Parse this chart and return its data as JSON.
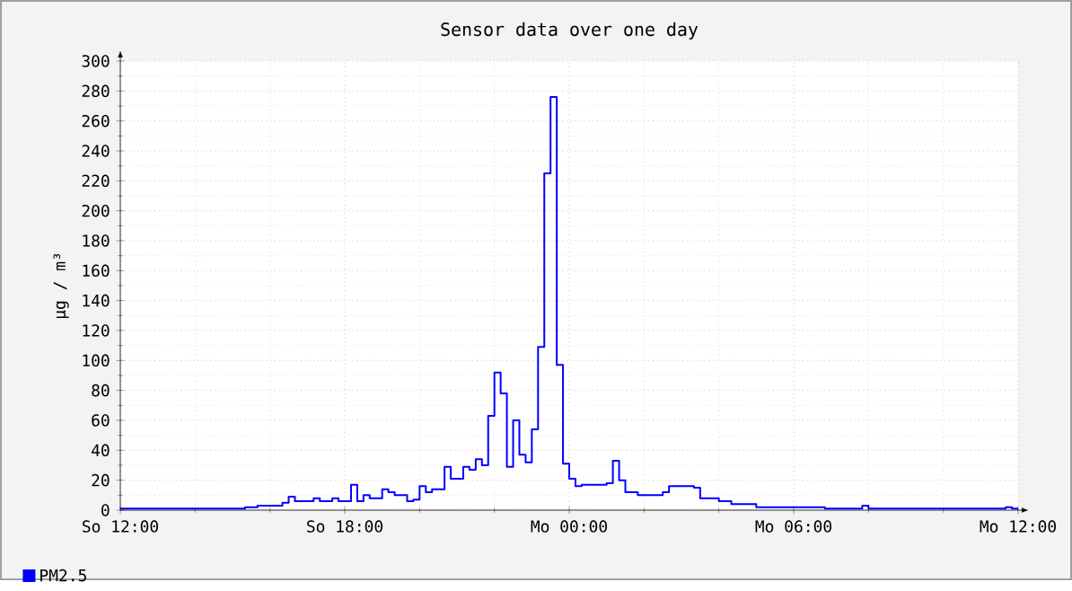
{
  "chart_data": {
    "type": "step",
    "title": "Sensor data over one day",
    "ylabel": "µg / m³",
    "categories": [
      "So 12:00",
      null,
      null,
      null,
      null,
      null,
      null,
      null,
      null,
      null,
      null,
      null,
      null,
      null,
      null,
      null,
      null,
      null,
      null,
      null,
      null,
      null,
      null,
      null,
      null,
      null,
      null,
      null,
      null,
      null,
      null,
      null,
      null,
      null,
      null,
      null,
      "So 18:00",
      null,
      null,
      null,
      null,
      null,
      null,
      null,
      null,
      null,
      null,
      null,
      null,
      null,
      null,
      null,
      null,
      null,
      null,
      null,
      null,
      null,
      null,
      null,
      null,
      null,
      null,
      null,
      null,
      null,
      null,
      null,
      null,
      null,
      null,
      null,
      "Mo 00:00",
      null,
      null,
      null,
      null,
      null,
      null,
      null,
      null,
      null,
      null,
      null,
      null,
      null,
      null,
      null,
      null,
      null,
      null,
      null,
      null,
      null,
      null,
      null,
      null,
      null,
      null,
      null,
      null,
      null,
      null,
      null,
      null,
      null,
      null,
      null,
      "Mo 06:00",
      null,
      null,
      null,
      null,
      null,
      null,
      null,
      null,
      null,
      null,
      null,
      null,
      null,
      null,
      null,
      null,
      null,
      null,
      null,
      null,
      null,
      null,
      null,
      null,
      null,
      null,
      null,
      null,
      null,
      null,
      null,
      null,
      null,
      null,
      null,
      "Mo 12:00"
    ],
    "series": [
      {
        "name": "PM2.5",
        "color": "#0000ff",
        "values": [
          1,
          1,
          1,
          1,
          1,
          1,
          1,
          1,
          1,
          1,
          1,
          1,
          1,
          1,
          1,
          1,
          1,
          1,
          1,
          1,
          2,
          2,
          3,
          3,
          3,
          3,
          5,
          9,
          6,
          6,
          6,
          8,
          6,
          6,
          8,
          6,
          6,
          17,
          6,
          10,
          8,
          8,
          14,
          12,
          10,
          10,
          6,
          7,
          16,
          12,
          14,
          14,
          29,
          21,
          21,
          29,
          27,
          34,
          30,
          63,
          92,
          78,
          29,
          60,
          37,
          32,
          54,
          109,
          225,
          276,
          97,
          31,
          21,
          16,
          17,
          17,
          17,
          17,
          18,
          33,
          20,
          12,
          12,
          10,
          10,
          10,
          10,
          12,
          16,
          16,
          16,
          16,
          15,
          8,
          8,
          8,
          6,
          6,
          4,
          4,
          4,
          4,
          2,
          2,
          2,
          2,
          2,
          2,
          2,
          2,
          2,
          2,
          2,
          1,
          1,
          1,
          1,
          1,
          1,
          3,
          1,
          1,
          1,
          1,
          1,
          1,
          1,
          1,
          1,
          1,
          1,
          1,
          1,
          1,
          1,
          1,
          1,
          1,
          1,
          1,
          1,
          1,
          2,
          1,
          1
        ]
      }
    ],
    "ylim": [
      0,
      300
    ],
    "yticks": [
      0,
      20,
      40,
      60,
      80,
      100,
      120,
      140,
      160,
      180,
      200,
      220,
      240,
      260,
      280,
      300
    ],
    "grid": true,
    "legend": "bottom left"
  }
}
